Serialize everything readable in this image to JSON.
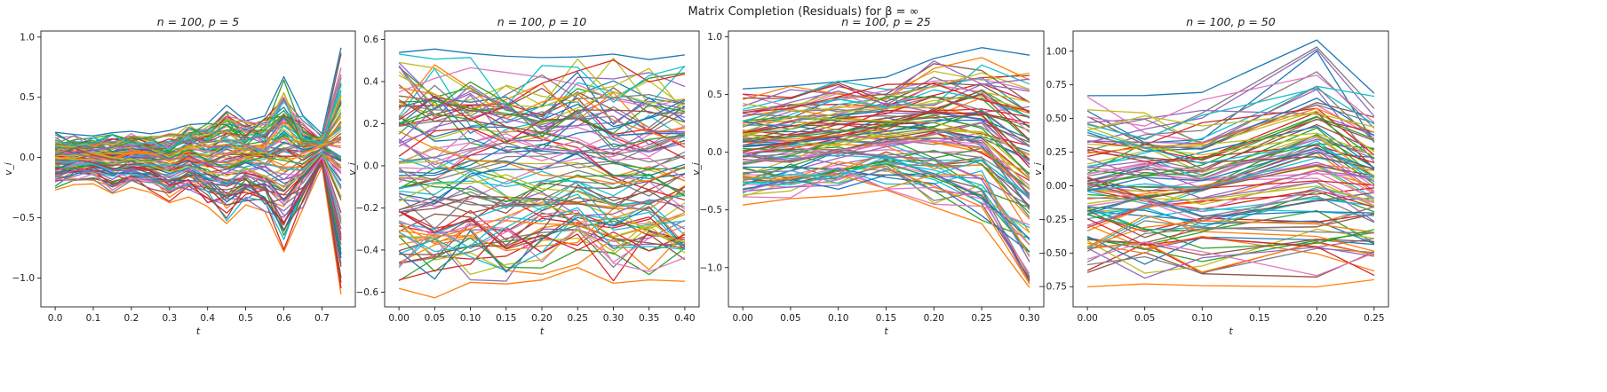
{
  "figure": {
    "suptitle": "Matrix Completion (Residuals) for β = ∞"
  },
  "palette": [
    "#1f77b4",
    "#ff7f0e",
    "#2ca02c",
    "#d62728",
    "#9467bd",
    "#8c564b",
    "#e377c2",
    "#7f7f7f",
    "#bcbd22",
    "#17becf"
  ],
  "chart_data": [
    {
      "type": "line",
      "title": "n = 100, p = 5",
      "xlabel": "t",
      "ylabel": "v_i",
      "xlim": [
        -0.0375,
        0.7875
      ],
      "ylim": [
        -1.24,
        1.05
      ],
      "x": [
        0.0,
        0.05,
        0.1,
        0.15,
        0.2,
        0.25,
        0.3,
        0.35,
        0.4,
        0.45,
        0.5,
        0.55,
        0.6,
        0.65,
        0.7,
        0.75
      ],
      "x_ticks": [
        "0.0",
        "0.1",
        "0.2",
        "0.3",
        "0.4",
        "0.5",
        "0.6",
        "0.7"
      ],
      "x_tick_values": [
        0.0,
        0.1,
        0.2,
        0.3,
        0.4,
        0.5,
        0.6,
        0.7
      ],
      "y_ticks": [
        "1.0",
        "0.5",
        "0.0",
        "−0.5",
        "−1.0"
      ],
      "y_tick_values": [
        1.0,
        0.5,
        0.0,
        -0.5,
        -1.0
      ],
      "series_count": 100,
      "envelope": {
        "upper": [
          0.22,
          0.2,
          0.19,
          0.21,
          0.22,
          0.21,
          0.23,
          0.29,
          0.3,
          0.44,
          0.32,
          0.36,
          0.7,
          0.36,
          0.2,
          0.95
        ],
        "lower": [
          -0.28,
          -0.23,
          -0.22,
          -0.31,
          -0.26,
          -0.29,
          -0.38,
          -0.33,
          -0.42,
          -0.55,
          -0.4,
          -0.47,
          -0.82,
          -0.44,
          -0.08,
          -1.14
        ]
      },
      "seed": 11
    },
    {
      "type": "line",
      "title": "n = 100, p = 10",
      "xlabel": "t",
      "ylabel": "v_i",
      "xlim": [
        -0.02,
        0.42
      ],
      "ylim": [
        -0.67,
        0.64
      ],
      "x": [
        0.0,
        0.05,
        0.1,
        0.15,
        0.2,
        0.25,
        0.3,
        0.35,
        0.4
      ],
      "x_ticks": [
        "0.00",
        "0.05",
        "0.10",
        "0.15",
        "0.20",
        "0.25",
        "0.30",
        "0.35",
        "0.40"
      ],
      "x_tick_values": [
        0.0,
        0.05,
        0.1,
        0.15,
        0.2,
        0.25,
        0.3,
        0.35,
        0.4
      ],
      "y_ticks": [
        "0.6",
        "0.4",
        "0.2",
        "0.0",
        "−0.2",
        "−0.4",
        "−0.6"
      ],
      "y_tick_values": [
        0.6,
        0.4,
        0.2,
        0.0,
        -0.2,
        -0.4,
        -0.6
      ],
      "series_count": 100,
      "envelope": {
        "upper": [
          0.56,
          0.57,
          0.55,
          0.53,
          0.52,
          0.54,
          0.54,
          0.53,
          0.53
        ],
        "lower": [
          -0.6,
          -0.63,
          -0.58,
          -0.57,
          -0.55,
          -0.49,
          -0.58,
          -0.55,
          -0.55
        ]
      },
      "seed": 23
    },
    {
      "type": "line",
      "title": "n = 100, p = 25",
      "xlabel": "t",
      "ylabel": "v_i",
      "xlim": [
        -0.015,
        0.315
      ],
      "ylim": [
        -1.34,
        1.05
      ],
      "x": [
        0.0,
        0.05,
        0.1,
        0.15,
        0.2,
        0.25,
        0.3
      ],
      "x_ticks": [
        "0.00",
        "0.05",
        "0.10",
        "0.15",
        "0.20",
        "0.25",
        "0.30"
      ],
      "x_tick_values": [
        0.0,
        0.05,
        0.1,
        0.15,
        0.2,
        0.25,
        0.3
      ],
      "y_ticks": [
        "1.0",
        "0.5",
        "0.0",
        "−0.5",
        "−1.0"
      ],
      "y_tick_values": [
        1.0,
        0.5,
        0.0,
        -0.5,
        -1.0
      ],
      "series_count": 100,
      "envelope": {
        "upper": [
          0.56,
          0.6,
          0.64,
          0.68,
          0.84,
          0.94,
          0.87
        ],
        "lower": [
          -0.48,
          -0.42,
          -0.38,
          -0.35,
          -0.48,
          -0.64,
          -1.22
        ]
      },
      "seed": 37
    },
    {
      "type": "line",
      "title": "n = 100, p = 50",
      "xlabel": "t",
      "ylabel": "v_i",
      "xlim": [
        -0.0125,
        0.2625
      ],
      "ylim": [
        -0.9,
        1.15
      ],
      "x": [
        0.0,
        0.05,
        0.1,
        0.2,
        0.25
      ],
      "x_ticks": [
        "0.00",
        "0.05",
        "0.10",
        "0.15",
        "0.20",
        "0.25"
      ],
      "x_tick_values": [
        0.0,
        0.05,
        0.1,
        0.15,
        0.2,
        0.25
      ],
      "y_ticks": [
        "1.00",
        "0.75",
        "0.50",
        "0.25",
        "0.00",
        "−0.25",
        "−0.50",
        "−0.75"
      ],
      "y_tick_values": [
        1.0,
        0.75,
        0.5,
        0.25,
        0.0,
        -0.25,
        -0.5,
        -0.75
      ],
      "series_count": 100,
      "envelope": {
        "upper": [
          0.71,
          0.71,
          0.71,
          1.1,
          0.72
        ],
        "lower": [
          -0.76,
          -0.75,
          -0.77,
          -0.8,
          -0.7
        ]
      },
      "seed": 53
    }
  ]
}
